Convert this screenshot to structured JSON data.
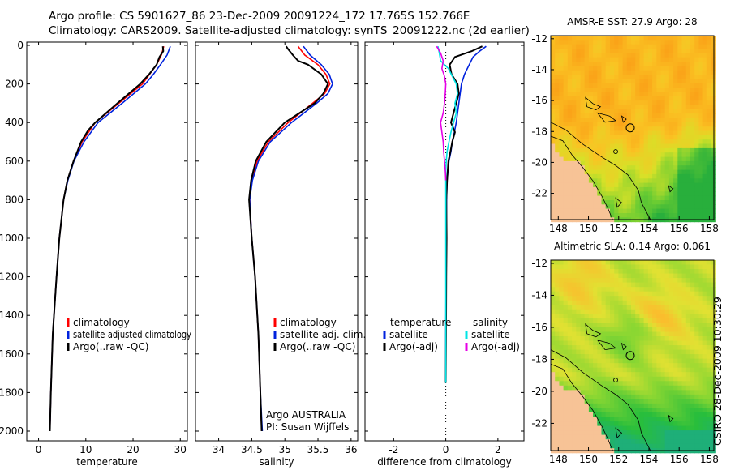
{
  "header": {
    "line1": "Argo profile: CS 5901627_86 23-Dec-2009 20091224_172 17.765S 152.766E",
    "line2": "Climatology: CARS2009. Satellite-adjusted climatology: synTS_20091222.nc (2d earlier)"
  },
  "credit": "CSIRO 28-Dec-2009 10:30:29",
  "colors": {
    "red": "#ff0000",
    "blue": "#0022dd",
    "black": "#000000",
    "cyan": "#00e5e5",
    "magenta": "#e600e6",
    "land": "#f7c396"
  },
  "chart_data": [
    {
      "type": "line",
      "title": "",
      "xlabel": "temperature",
      "ylabel": "",
      "xlim": [
        -2.5,
        31.5
      ],
      "ylim": [
        2050,
        0
      ],
      "xticks": [
        0,
        10,
        20,
        30
      ],
      "yticks": [
        0,
        200,
        400,
        600,
        800,
        1000,
        1200,
        1400,
        1600,
        1800,
        2000
      ],
      "legend": [
        "climatology",
        "satellite-adjusted climatology",
        "Argo(..raw -QC)"
      ],
      "legend_position": "lower-left",
      "series": [
        {
          "name": "climatology",
          "color": "red",
          "depth": [
            5,
            50,
            100,
            150,
            200,
            300,
            400,
            500,
            600,
            700,
            800,
            1000,
            1200,
            1500,
            1800,
            2000
          ],
          "values": [
            26.5,
            26.0,
            25.0,
            23.5,
            22.0,
            17.0,
            12.0,
            9.2,
            7.4,
            6.1,
            5.3,
            4.4,
            3.8,
            3.0,
            2.6,
            2.4
          ]
        },
        {
          "name": "satellite-adjusted climatology",
          "color": "blue",
          "depth": [
            5,
            50,
            100,
            150,
            200,
            300,
            400,
            500,
            600,
            700,
            800,
            1000,
            1200,
            1500,
            1800,
            2000
          ],
          "values": [
            27.9,
            27.2,
            25.8,
            24.3,
            22.6,
            17.7,
            12.6,
            9.6,
            7.5,
            6.2,
            5.3,
            4.4,
            3.8,
            3.0,
            2.6,
            2.4
          ]
        },
        {
          "name": "Argo(..raw -QC)",
          "color": "black",
          "depth": [
            5,
            30,
            60,
            100,
            150,
            200,
            300,
            400,
            440,
            500,
            600,
            700,
            800,
            1000,
            1200,
            1500,
            1800,
            2000
          ],
          "values": [
            26.3,
            26.4,
            25.6,
            25.0,
            23.4,
            21.5,
            16.7,
            12.0,
            10.5,
            9.0,
            7.4,
            6.1,
            5.3,
            4.4,
            3.8,
            3.0,
            2.6,
            2.4
          ]
        }
      ]
    },
    {
      "type": "line",
      "title": "",
      "xlabel": "salinity",
      "ylabel": "",
      "xlim": [
        33.65,
        36.1
      ],
      "ylim": [
        2050,
        0
      ],
      "xticks": [
        34,
        34.5,
        35,
        35.5,
        36
      ],
      "yticks": [
        0,
        200,
        400,
        600,
        800,
        1000,
        1200,
        1400,
        1600,
        1800,
        2000
      ],
      "legend": [
        "climatology",
        "satellite adj. clim.",
        "Argo(..raw -QC)"
      ],
      "legend_position": "lower-right",
      "annotation": [
        "Argo AUSTRALIA",
        "PI: Susan Wijffels"
      ],
      "series": [
        {
          "name": "climatology",
          "color": "red",
          "depth": [
            5,
            50,
            100,
            150,
            200,
            250,
            300,
            400,
            500,
            600,
            700,
            800,
            1000,
            1200,
            1500,
            1800,
            2000
          ],
          "values": [
            35.2,
            35.3,
            35.5,
            35.62,
            35.68,
            35.6,
            35.42,
            35.05,
            34.75,
            34.58,
            34.5,
            34.47,
            34.5,
            34.55,
            34.6,
            34.63,
            34.65
          ]
        },
        {
          "name": "satellite adj. clim.",
          "color": "blue",
          "depth": [
            5,
            50,
            100,
            150,
            200,
            250,
            300,
            400,
            500,
            600,
            700,
            800,
            1000,
            1200,
            1500,
            1800,
            2000
          ],
          "values": [
            35.28,
            35.38,
            35.55,
            35.67,
            35.72,
            35.65,
            35.48,
            35.1,
            34.78,
            34.6,
            34.51,
            34.47,
            34.5,
            34.55,
            34.6,
            34.63,
            34.66
          ]
        },
        {
          "name": "Argo(..raw -QC)",
          "color": "black",
          "depth": [
            5,
            20,
            50,
            80,
            100,
            150,
            200,
            250,
            300,
            400,
            500,
            600,
            700,
            800,
            1000,
            1200,
            1500,
            1800,
            2000
          ],
          "values": [
            35.02,
            35.05,
            35.12,
            35.2,
            35.35,
            35.55,
            35.65,
            35.58,
            35.45,
            35.0,
            34.72,
            34.56,
            34.49,
            34.46,
            34.5,
            34.55,
            34.6,
            34.63,
            34.65
          ]
        }
      ]
    },
    {
      "type": "line",
      "title": "",
      "xlabel": "difference from climatology",
      "ylabel": "",
      "xlim": [
        -3.1,
        3.0
      ],
      "ylim": [
        2050,
        0
      ],
      "xticks": [
        -2,
        0,
        2
      ],
      "yticks": [
        0,
        200,
        400,
        600,
        800,
        1000,
        1200,
        1400,
        1600,
        1800,
        2000
      ],
      "legend_temperature": {
        "title": "temperature",
        "items": [
          "satellite",
          "Argo(-adj)"
        ]
      },
      "legend_salinity": {
        "title": "salinity",
        "items": [
          "satellite",
          "Argo(-adj)"
        ]
      },
      "series": [
        {
          "name": "temperature satellite",
          "color": "blue",
          "depth": [
            5,
            30,
            60,
            100,
            150,
            200,
            250,
            300,
            350,
            400,
            450,
            500,
            550,
            600,
            700,
            800,
            1000,
            1200,
            1500,
            1750
          ],
          "values": [
            1.55,
            1.3,
            1.05,
            0.9,
            0.72,
            0.6,
            0.55,
            0.5,
            0.45,
            0.4,
            0.33,
            0.25,
            0.2,
            0.12,
            0.05,
            0.03,
            0.02,
            0.01,
            0.0,
            0.0
          ]
        },
        {
          "name": "temperature Argo(-adj)",
          "color": "black",
          "depth": [
            5,
            30,
            60,
            100,
            150,
            200,
            250,
            300,
            350,
            400,
            450,
            500,
            550,
            600,
            700,
            800,
            1000,
            1200,
            1500,
            1750
          ],
          "values": [
            1.4,
            1.0,
            0.35,
            0.15,
            0.22,
            0.45,
            0.5,
            0.4,
            0.3,
            0.2,
            0.35,
            0.25,
            0.18,
            0.1,
            0.05,
            0.02,
            0.03,
            0.02,
            0.01,
            0.0
          ]
        },
        {
          "name": "salinity satellite",
          "color": "cyan",
          "depth": [
            5,
            40,
            80,
            120,
            160,
            200,
            250,
            300,
            350,
            400,
            450,
            500,
            550,
            600,
            650,
            700,
            800,
            1000,
            1200,
            1500,
            1750
          ],
          "values": [
            -0.3,
            -0.25,
            -0.2,
            0.1,
            0.25,
            0.4,
            0.45,
            0.35,
            0.4,
            0.3,
            0.2,
            0.12,
            0.05,
            0.02,
            0.0,
            0.0,
            0.0,
            0.0,
            0.0,
            0.0,
            0.0
          ]
        },
        {
          "name": "salinity Argo(-adj)",
          "color": "magenta",
          "depth": [
            5,
            40,
            80,
            120,
            160,
            200,
            250,
            300,
            350,
            400,
            450,
            500,
            550,
            600,
            650,
            700
          ],
          "values": [
            -0.35,
            -0.2,
            -0.1,
            -0.15,
            -0.05,
            0.0,
            -0.02,
            -0.05,
            -0.1,
            -0.2,
            -0.15,
            -0.1,
            -0.08,
            -0.05,
            -0.02,
            0.0
          ]
        }
      ]
    },
    {
      "type": "heatmap",
      "title": "AMSR-E SST: 27.9 Argo: 28",
      "xlim": [
        147.5,
        158.3
      ],
      "ylim": [
        -23.7,
        -11.8
      ],
      "xticks": [
        148,
        150,
        152,
        154,
        156,
        158
      ],
      "yticks": [
        -12,
        -14,
        -16,
        -18,
        -20,
        -22
      ],
      "profile_location": {
        "lon": 152.766,
        "lat": -17.765
      }
    },
    {
      "type": "heatmap",
      "title": "Altimetric SLA: 0.14 Argo: 0.061",
      "xlim": [
        147.5,
        158.3
      ],
      "ylim": [
        -23.7,
        -11.8
      ],
      "xticks": [
        148,
        150,
        152,
        154,
        156,
        158
      ],
      "yticks": [
        -12,
        -14,
        -16,
        -18,
        -20,
        -22
      ],
      "profile_location": {
        "lon": 152.766,
        "lat": -17.765
      }
    }
  ]
}
